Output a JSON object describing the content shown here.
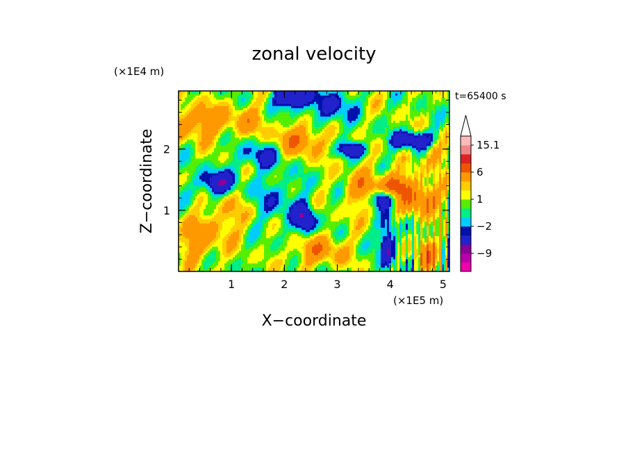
{
  "chart_data": {
    "type": "heatmap",
    "title": "zonal velocity",
    "xlabel": "X−coordinate",
    "ylabel": "Z−coordinate",
    "x_unit": "(×1E5 m)",
    "y_unit": "(×1E4 m)",
    "time_label": "t=65400 s",
    "xlim": [
      0,
      5.12
    ],
    "ylim": [
      0,
      2.95
    ],
    "x_ticks": [
      1,
      2,
      3,
      4,
      5
    ],
    "x_tick_labels": [
      "1",
      "2",
      "3",
      "4",
      "5"
    ],
    "y_ticks": [
      1,
      2
    ],
    "y_tick_labels": [
      "1",
      "2"
    ],
    "colorbar": {
      "extend": "max",
      "levels": [
        -15,
        -12,
        -9,
        -6,
        -3,
        -2,
        -1,
        0,
        1,
        2,
        3,
        6,
        9,
        12,
        15.1
      ],
      "colors": [
        "#ee00aa",
        "#bb00aa",
        "#880099",
        "#2222cc",
        "#0011aa",
        "#00ccff",
        "#00ee88",
        "#55ee00",
        "#ffff00",
        "#ffcc00",
        "#ff9900",
        "#ee5500",
        "#dd2222",
        "#ee8888",
        "#ffbbbb",
        "#ffffff"
      ],
      "tick_values": [
        15.1,
        6,
        1,
        -2,
        -9
      ],
      "tick_labels": [
        "15.1",
        "6",
        "1",
        "−2",
        "−9"
      ]
    },
    "fields": [
      {
        "x": 0.42,
        "z": 2.45,
        "sx": 0.55,
        "sz": 0.28,
        "amp": 4.5
      },
      {
        "x": 0.7,
        "z": 1.45,
        "sx": 0.35,
        "sz": 0.2,
        "amp": -6
      },
      {
        "x": 0.35,
        "z": 0.5,
        "sx": 0.4,
        "sz": 0.3,
        "amp": 4
      },
      {
        "x": 0.9,
        "z": 0.9,
        "sx": 0.5,
        "sz": 0.35,
        "amp": 2.5
      },
      {
        "x": 1.35,
        "z": 2.5,
        "sx": 0.35,
        "sz": 0.22,
        "amp": 3
      },
      {
        "x": 1.55,
        "z": 1.9,
        "sx": 0.45,
        "sz": 0.2,
        "amp": -3.5
      },
      {
        "x": 1.85,
        "z": 1.15,
        "sx": 0.45,
        "sz": 0.45,
        "amp": -2.5
      },
      {
        "x": 2.15,
        "z": 2.85,
        "sx": 0.3,
        "sz": 0.2,
        "amp": -8
      },
      {
        "x": 2.3,
        "z": 2.15,
        "sx": 0.45,
        "sz": 0.25,
        "amp": 5
      },
      {
        "x": 2.4,
        "z": 0.85,
        "sx": 0.2,
        "sz": 0.25,
        "amp": -6
      },
      {
        "x": 2.65,
        "z": 0.35,
        "sx": 0.5,
        "sz": 0.25,
        "amp": 4
      },
      {
        "x": 2.9,
        "z": 2.7,
        "sx": 0.35,
        "sz": 0.3,
        "amp": -4
      },
      {
        "x": 3.3,
        "z": 2.0,
        "sx": 0.25,
        "sz": 0.12,
        "amp": -6
      },
      {
        "x": 3.5,
        "z": 1.35,
        "sx": 0.35,
        "sz": 0.35,
        "amp": 4
      },
      {
        "x": 3.85,
        "z": 1.2,
        "sx": 0.25,
        "sz": 0.15,
        "amp": -7
      },
      {
        "x": 4.1,
        "z": 1.4,
        "sx": 0.25,
        "sz": 0.2,
        "amp": 8
      },
      {
        "x": 4.45,
        "z": 2.15,
        "sx": 0.4,
        "sz": 0.15,
        "amp": -6
      },
      {
        "x": 4.6,
        "z": 1.2,
        "sx": 0.35,
        "sz": 0.25,
        "amp": 6
      },
      {
        "x": 4.7,
        "z": 0.3,
        "sx": 0.2,
        "sz": 0.3,
        "amp": 5
      },
      {
        "x": 3.95,
        "z": 0.45,
        "sx": 0.15,
        "sz": 0.4,
        "amp": -6
      },
      {
        "x": 4.85,
        "z": 1.9,
        "sx": 0.2,
        "sz": 0.25,
        "amp": 4
      }
    ]
  }
}
